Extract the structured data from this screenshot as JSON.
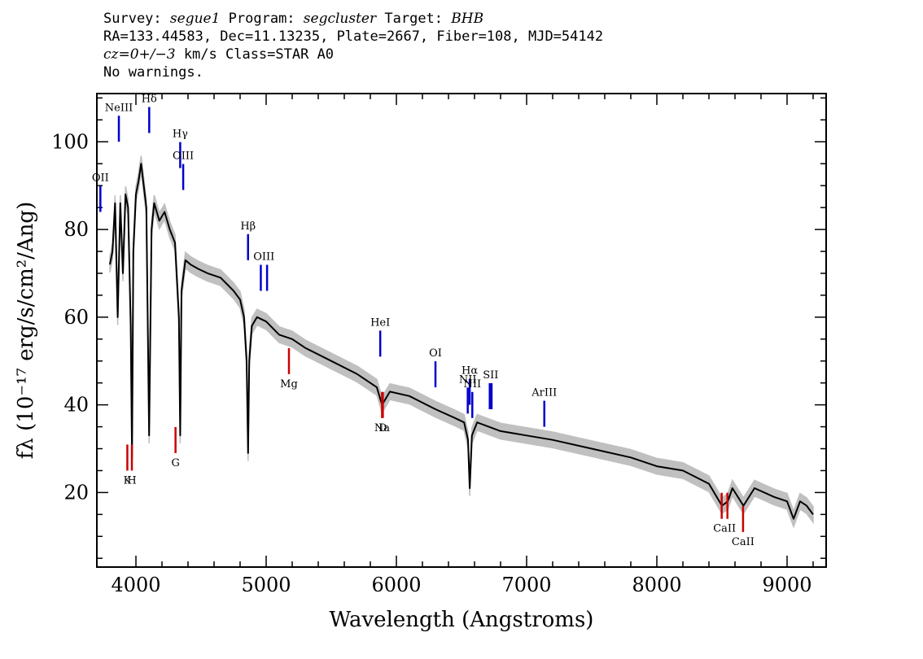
{
  "header": {
    "survey_key": "Survey:",
    "survey": "segue1",
    "program_key": "Program:",
    "program": "segcluster",
    "target_key": "Target:",
    "target": "BHB",
    "line2": "RA=133.44583, Dec=11.13235, Plate=2667, Fiber=108, MJD=54142",
    "cz": "cz=0+/−3",
    "line3_rest": " km/s Class=STAR A0",
    "line4": "No warnings."
  },
  "chart_data": {
    "type": "line",
    "xlabel": "Wavelength (Angstroms)",
    "ylabel": "fλ (10⁻¹⁷ erg/s/cm²/Ang)",
    "xlim": [
      3700,
      9300
    ],
    "ylim": [
      3,
      111
    ],
    "x_ticks": [
      4000,
      5000,
      6000,
      7000,
      8000,
      9000
    ],
    "y_ticks": [
      20,
      40,
      60,
      80,
      100
    ],
    "grid": false,
    "colors": {
      "spectrum": "#000000",
      "error": "#c0c0c0",
      "emission": "#0000cc",
      "absorption": "#cc0000"
    },
    "series": [
      {
        "x": [
          3800,
          3820,
          3840,
          3860,
          3880,
          3900,
          3920,
          3940,
          3960,
          3970,
          3980,
          4000,
          4020,
          4040,
          4060,
          4080,
          4101,
          4120,
          4140,
          4180,
          4220,
          4260,
          4300,
          4330,
          4340,
          4350,
          4380,
          4420,
          4480,
          4550,
          4650,
          4750,
          4800,
          4830,
          4850,
          4861,
          4870,
          4890,
          4930,
          5000,
          5100,
          5200,
          5300,
          5500,
          5700,
          5850,
          5890,
          5950,
          6100,
          6300,
          6450,
          6520,
          6550,
          6563,
          6580,
          6620,
          6800,
          7000,
          7200,
          7500,
          7800,
          8000,
          8200,
          8400,
          8500,
          8545,
          8580,
          8665,
          8750,
          8900,
          9000,
          9050,
          9100,
          9150,
          9200
        ],
        "y": [
          72,
          75,
          86,
          60,
          86,
          70,
          88,
          85,
          58,
          28,
          75,
          88,
          91,
          95,
          90,
          85,
          33,
          80,
          86,
          82,
          84,
          80,
          77,
          60,
          33,
          66,
          73,
          72,
          71,
          70,
          69,
          66,
          64,
          60,
          50,
          29,
          50,
          58,
          60,
          59,
          56,
          55,
          53,
          50,
          47,
          44,
          40,
          43,
          42,
          39,
          37,
          36,
          32,
          21,
          33,
          36,
          34,
          33,
          32,
          30,
          28,
          26,
          25,
          22,
          17,
          18,
          21,
          17,
          21,
          19,
          18,
          14,
          18,
          17,
          15
        ]
      }
    ],
    "emission_lines": [
      {
        "label": "OII",
        "x": 3727,
        "y": 84
      },
      {
        "label": "NeIII",
        "x": 3869,
        "y": 100
      },
      {
        "label": "Hδ",
        "x": 4102,
        "y": 102
      },
      {
        "label": "Hγ",
        "x": 4340,
        "y": 94
      },
      {
        "label": "OIII",
        "x": 4363,
        "y": 89
      },
      {
        "label": "Hβ",
        "x": 4861,
        "y": 73
      },
      {
        "label": "OIII",
        "x": 4959,
        "y": 66,
        "x2": 5007
      },
      {
        "label": "HeI",
        "x": 5876,
        "y": 51
      },
      {
        "label": "OI",
        "x": 6300,
        "y": 44
      },
      {
        "label": "Hα",
        "x": 6563,
        "y": 40
      },
      {
        "label": "NII",
        "x": 6548,
        "y": 38
      },
      {
        "label": "NII",
        "x": 6583,
        "y": 37
      },
      {
        "label": "SII",
        "x": 6717,
        "y": 39,
        "x2": 6731
      },
      {
        "label": "ArIII",
        "x": 7136,
        "y": 35
      }
    ],
    "absorption_lines": [
      {
        "label": "K",
        "x": 3934,
        "y": 25
      },
      {
        "label": "H",
        "x": 3969,
        "y": 25
      },
      {
        "label": "G",
        "x": 4304,
        "y": 29
      },
      {
        "label": "Mg",
        "x": 5175,
        "y": 47
      },
      {
        "label": "Na",
        "x": 5890,
        "y": 37
      },
      {
        "label": "D",
        "x": 5896,
        "y": 37
      },
      {
        "label": "CaII",
        "x": 8498,
        "y": 14,
        "x2": 8542
      },
      {
        "label": "CaII",
        "x": 8662,
        "y": 11
      }
    ]
  }
}
